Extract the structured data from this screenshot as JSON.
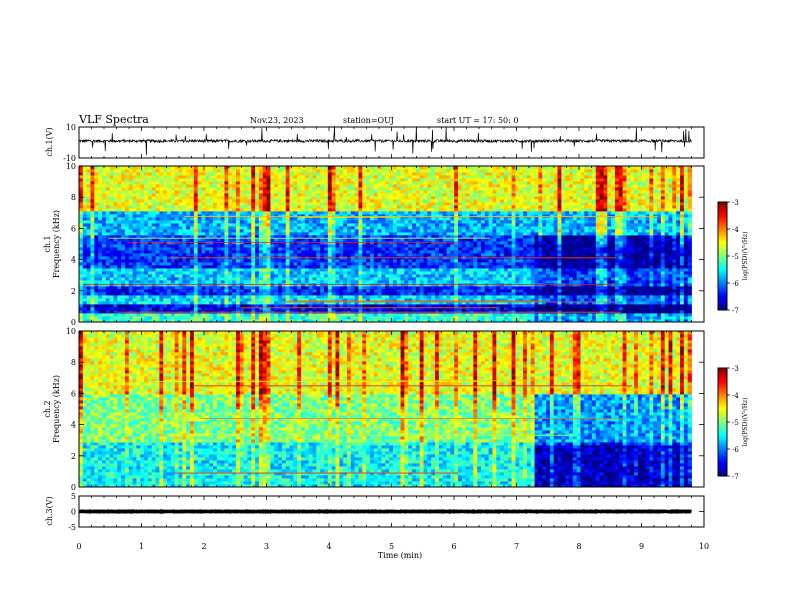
{
  "header": {
    "title": "VLF Spectra",
    "date": "Nov.23, 2023",
    "station": "station=OUJ",
    "start": "start  UT  =   17: 50: 0"
  },
  "chart_data": [
    {
      "type": "line",
      "id": "ch1_waveform",
      "ylabel": "ch.1(V)",
      "ylim": [
        -10,
        10
      ],
      "yticks": [
        "10",
        "-10"
      ],
      "xlim": [
        0,
        10
      ],
      "trace_range_min": [
        0,
        9.8
      ],
      "baseline": 1,
      "color": "#000000"
    },
    {
      "type": "heatmap",
      "id": "ch1_spectrogram",
      "ylabel": "ch.1\nFrequency (kHz)",
      "ylim": [
        0,
        10
      ],
      "yticks": [
        "0",
        "2",
        "4",
        "6",
        "8",
        "10"
      ],
      "xlim": [
        0,
        10
      ],
      "data_range_min": [
        0,
        9.8
      ],
      "colorbar": {
        "label": "log(PSD)(V²/Hz)",
        "ticks": [
          "-3",
          "-4",
          "-5",
          "-6",
          "-7"
        ],
        "range": [
          -7,
          -3
        ]
      },
      "bands_khz": [
        {
          "from": 0,
          "to": 0.6,
          "level": -5.3
        },
        {
          "from": 0.6,
          "to": 1.2,
          "level": -6.6
        },
        {
          "from": 1.2,
          "to": 1.8,
          "level": -5.6
        },
        {
          "from": 1.8,
          "to": 2.4,
          "level": -6.4
        },
        {
          "from": 2.4,
          "to": 3.4,
          "level": -5.7
        },
        {
          "from": 3.4,
          "to": 5.5,
          "level": -6.3
        },
        {
          "from": 5.5,
          "to": 7.2,
          "level": -5.8
        },
        {
          "from": 7.2,
          "to": 10,
          "level": -4.6
        }
      ],
      "after_7_3_min": "lower-frequency bands deepen to about -6.8 (blue)"
    },
    {
      "type": "heatmap",
      "id": "ch2_spectrogram",
      "ylabel": "ch.2\nFrequency (kHz)",
      "ylim": [
        0,
        10
      ],
      "yticks": [
        "0",
        "2",
        "4",
        "6",
        "8",
        "10"
      ],
      "xlim": [
        0,
        10
      ],
      "data_range_min": [
        0,
        9.8
      ],
      "colorbar": {
        "label": "log(PSD)(V²/Hz)",
        "ticks": [
          "-3",
          "-4",
          "-5",
          "-6",
          "-7"
        ],
        "range": [
          -7,
          -3
        ]
      },
      "bands_khz": [
        {
          "from": 0,
          "to": 2.8,
          "level": -5.5
        },
        {
          "from": 2.8,
          "to": 6,
          "level": -5.0
        },
        {
          "from": 6,
          "to": 10,
          "level": -4.6
        }
      ],
      "after_7_3_min": "0-6 kHz drops to about -6.2 (blue/cyan) with dark blue near 0.5-2.5 kHz"
    },
    {
      "type": "line",
      "id": "ch3_waveform",
      "ylabel": "ch.3(V)",
      "ylim": [
        -5,
        5
      ],
      "yticks": [
        "5",
        "0",
        "-5"
      ],
      "xlim": [
        0,
        10
      ],
      "trace_range_min": [
        0,
        9.8
      ],
      "baseline": 0,
      "color": "#000000"
    }
  ],
  "xaxis": {
    "label": "Time (min)",
    "ticks": [
      "0",
      "1",
      "2",
      "3",
      "4",
      "5",
      "6",
      "7",
      "8",
      "9",
      "10"
    ]
  }
}
